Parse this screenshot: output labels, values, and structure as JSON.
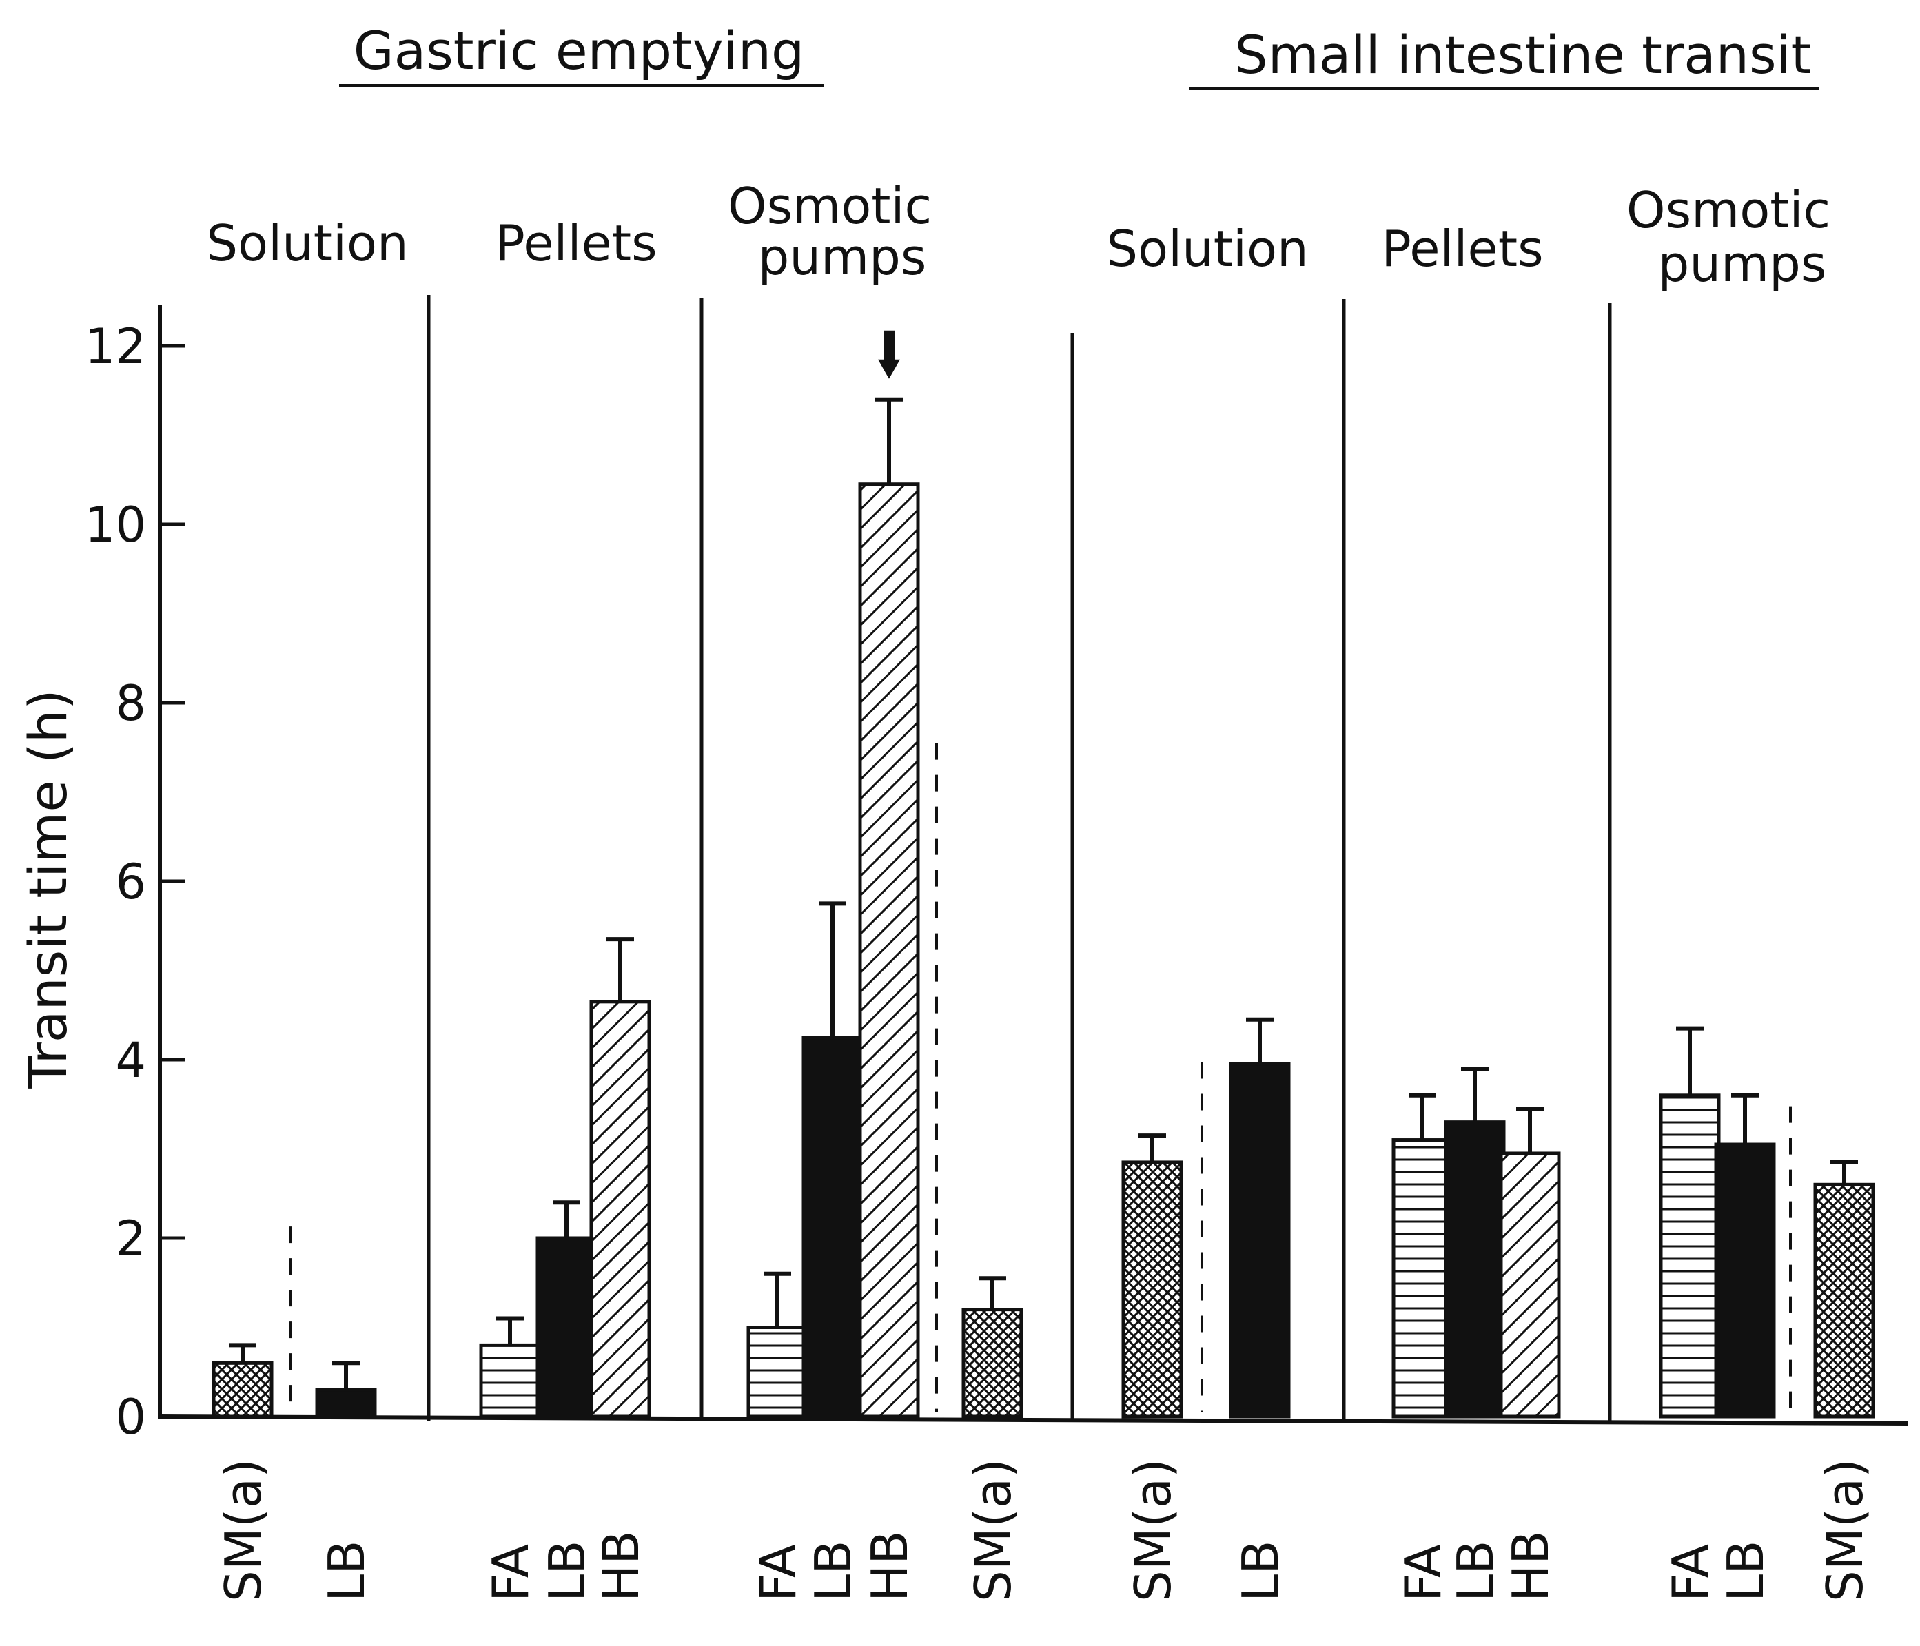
{
  "chart_data": {
    "type": "bar",
    "ylabel": "Transit time (h)",
    "ylim": [
      0,
      12
    ],
    "yticks": [
      0,
      2,
      4,
      6,
      8,
      10,
      12
    ],
    "fills": {
      "SM(a)": "crosshatch",
      "LB": "solid",
      "FA": "horizontal-lines",
      "HB": "diagonal-lines"
    },
    "sections": [
      {
        "title": "Gastric emptying",
        "groups": [
          {
            "label": [
              "Solution"
            ],
            "bars": [
              {
                "category": "SM(a)",
                "value": 0.6,
                "error": 0.2
              },
              {
                "category": "LB",
                "value": 0.3,
                "error": 0.3,
                "dashed_separator_before": true
              }
            ]
          },
          {
            "label": [
              "Pellets"
            ],
            "bars": [
              {
                "category": "FA",
                "value": 0.8,
                "error": 0.3
              },
              {
                "category": "LB",
                "value": 2.0,
                "error": 0.4
              },
              {
                "category": "HB",
                "value": 4.65,
                "error": 0.7
              }
            ]
          },
          {
            "label": [
              "Osmotic",
              "pumps"
            ],
            "bars": [
              {
                "category": "FA",
                "value": 1.0,
                "error": 0.6
              },
              {
                "category": "LB",
                "value": 4.25,
                "error": 1.5
              },
              {
                "category": "HB",
                "value": 10.45,
                "error": 0.95,
                "arrow_marker": true
              },
              {
                "category": "SM(a)",
                "value": 1.2,
                "error": 0.35,
                "dashed_separator_before": true
              }
            ]
          }
        ]
      },
      {
        "title": "Small intestine transit",
        "groups": [
          {
            "label": [
              "Solution"
            ],
            "bars": [
              {
                "category": "SM(a)",
                "value": 2.85,
                "error": 0.3
              },
              {
                "category": "LB",
                "value": 3.95,
                "error": 0.5,
                "dashed_separator_before": true
              }
            ]
          },
          {
            "label": [
              "Pellets"
            ],
            "bars": [
              {
                "category": "FA",
                "value": 3.1,
                "error": 0.5
              },
              {
                "category": "LB",
                "value": 3.3,
                "error": 0.6
              },
              {
                "category": "HB",
                "value": 2.95,
                "error": 0.5
              }
            ]
          },
          {
            "label": [
              "Osmotic",
              "pumps"
            ],
            "bars": [
              {
                "category": "FA",
                "value": 3.6,
                "error": 0.75
              },
              {
                "category": "LB",
                "value": 3.05,
                "error": 0.55
              },
              {
                "category": "SM(a)",
                "value": 2.6,
                "error": 0.25,
                "dashed_separator_before": true
              }
            ]
          }
        ]
      }
    ]
  }
}
